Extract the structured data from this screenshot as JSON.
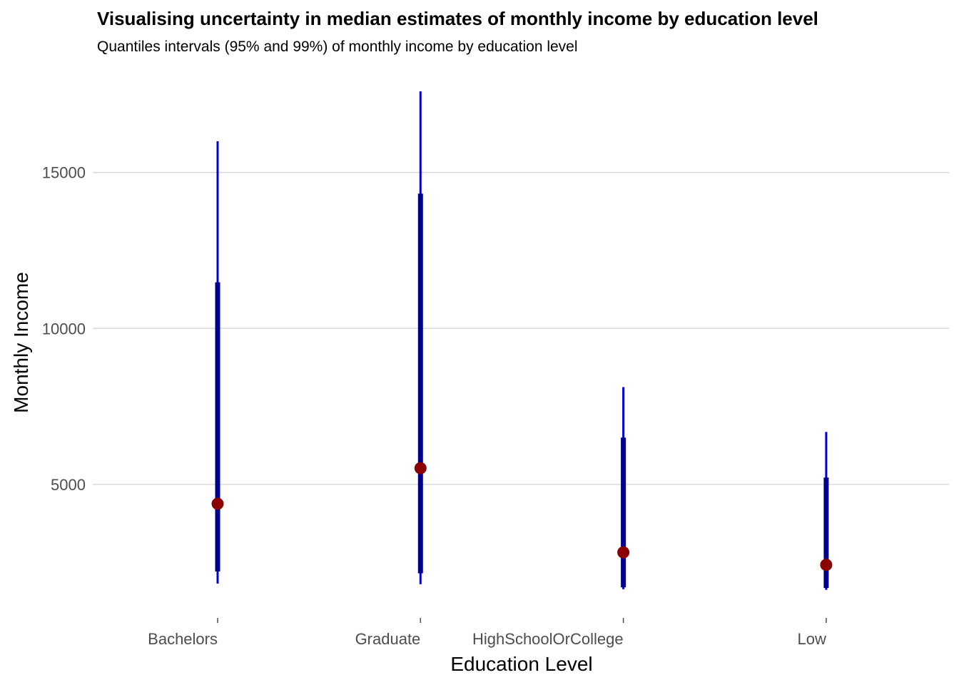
{
  "chart_data": {
    "type": "interval",
    "title": "Visualising uncertainty in median estimates of monthly income by education level",
    "subtitle": "Quantiles intervals (95% and 99%) of monthly income by education level",
    "xlabel": "Education Level",
    "ylabel": "Monthly Income",
    "ylim": [
      1200,
      17600
    ],
    "yticks": [
      5000,
      10000,
      15000
    ],
    "grid": true,
    "categories": [
      "Bachelors",
      "Graduate",
      "HighSchoolOrCollege",
      "Low"
    ],
    "median": [
      4380,
      5520,
      2820,
      2420
    ],
    "ci95_low": [
      2210,
      2150,
      1700,
      1680
    ],
    "ci95_high": [
      11480,
      14320,
      6500,
      5220
    ],
    "ci99_low": [
      1820,
      1800,
      1640,
      1620
    ],
    "ci99_high": [
      16000,
      17600,
      8120,
      6680
    ],
    "colors": {
      "ci95": "#00008B",
      "ci99": "#0000CD",
      "median": "#8B0000",
      "grid": "#D9D9D9",
      "ticks": "#4d4d4d"
    }
  }
}
